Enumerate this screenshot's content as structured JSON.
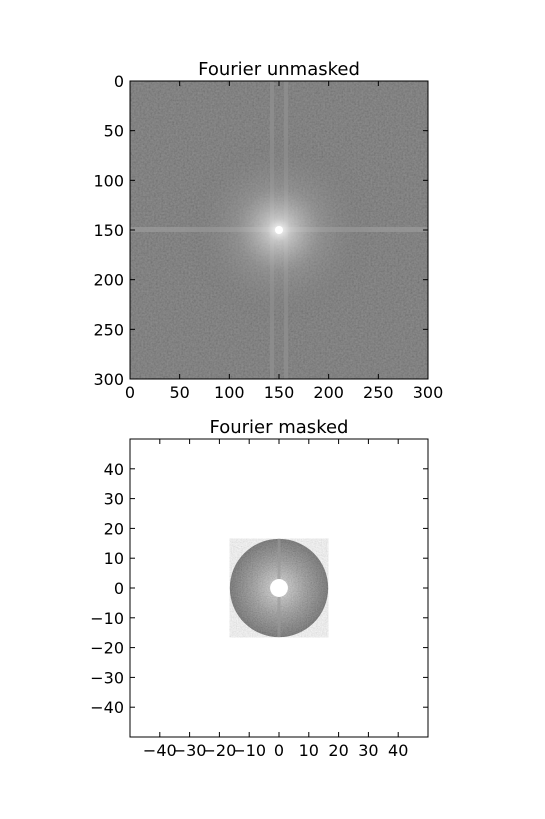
{
  "chart_data": [
    {
      "type": "heatmap",
      "title": "Fourier unmasked",
      "xlabel": "",
      "ylabel": "",
      "xlim": [
        0,
        300
      ],
      "ylim": [
        300,
        0
      ],
      "xticks": [
        0,
        50,
        100,
        150,
        200,
        250,
        300
      ],
      "yticks": [
        0,
        50,
        100,
        150,
        200,
        250,
        300
      ],
      "colormap": "gray",
      "content": "log-magnitude 2D Fourier spectrum, bright center at (150,150) with horizontal and vertical cross streaks",
      "center": [
        150,
        150
      ]
    },
    {
      "type": "heatmap",
      "title": "Fourier masked",
      "xlabel": "",
      "ylabel": "",
      "xlim": [
        -50,
        50
      ],
      "ylim": [
        -50,
        50
      ],
      "xticks": [
        -40,
        -30,
        -20,
        -10,
        0,
        10,
        20,
        30,
        40
      ],
      "yticks": [
        40,
        30,
        20,
        10,
        0,
        -10,
        -20,
        -30,
        -40
      ],
      "colormap": "gray",
      "content": "annular band-pass mask of the spectrum",
      "mask_inner_radius": 3,
      "mask_outer_radius": 16.5
    }
  ],
  "colors": {
    "background": "#ffffff",
    "axes_edge": "#000000",
    "spectrum_base": "#6b6b6b",
    "spectrum_bright": "#f2f2f2"
  }
}
